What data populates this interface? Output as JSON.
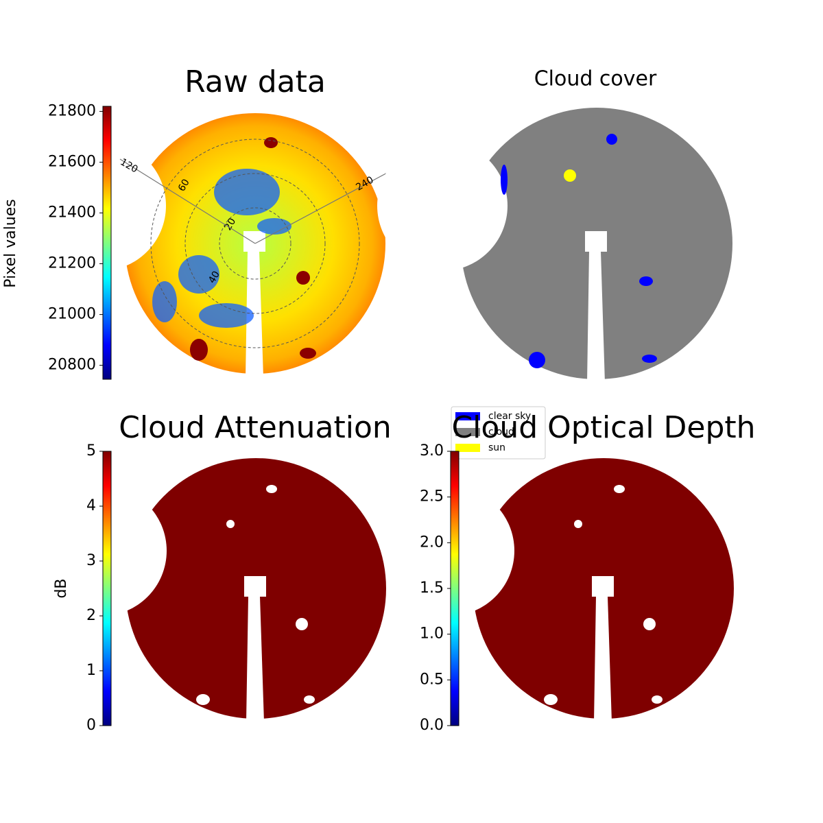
{
  "chart_data": [
    {
      "type": "image",
      "title": "Raw data",
      "colormap": "jet",
      "ylabel": "Pixel values",
      "ylim": [
        20745,
        21820
      ],
      "yticks": [
        20800,
        21000,
        21200,
        21400,
        21600,
        21800
      ],
      "rticks": [
        20,
        40,
        60
      ],
      "azimuth_ticks": [
        120,
        240
      ]
    },
    {
      "type": "image",
      "title": "Cloud cover",
      "legend": [
        {
          "name": "clear sky",
          "color": "#0000ff"
        },
        {
          "name": "cloud",
          "color": "#808080"
        },
        {
          "name": "sun",
          "color": "#ffff00"
        }
      ]
    },
    {
      "type": "image",
      "title": "Cloud Attenuation",
      "colormap": "jet",
      "ylabel": "dB",
      "ylim": [
        0,
        5
      ],
      "yticks": [
        0,
        1,
        2,
        3,
        4,
        5
      ]
    },
    {
      "type": "image",
      "title": "Cloud Optical Depth",
      "colormap": "jet",
      "ylim": [
        0,
        3
      ],
      "yticks": [
        {
          "value": 0,
          "label": "0.0"
        },
        {
          "value": 0.5,
          "label": "0.5"
        },
        {
          "value": 1,
          "label": "1.0"
        },
        {
          "value": 1.5,
          "label": "1.5"
        },
        {
          "value": 2,
          "label": "2.0"
        },
        {
          "value": 2.5,
          "label": "2.5"
        },
        {
          "value": 3,
          "label": "3.0"
        }
      ]
    }
  ]
}
